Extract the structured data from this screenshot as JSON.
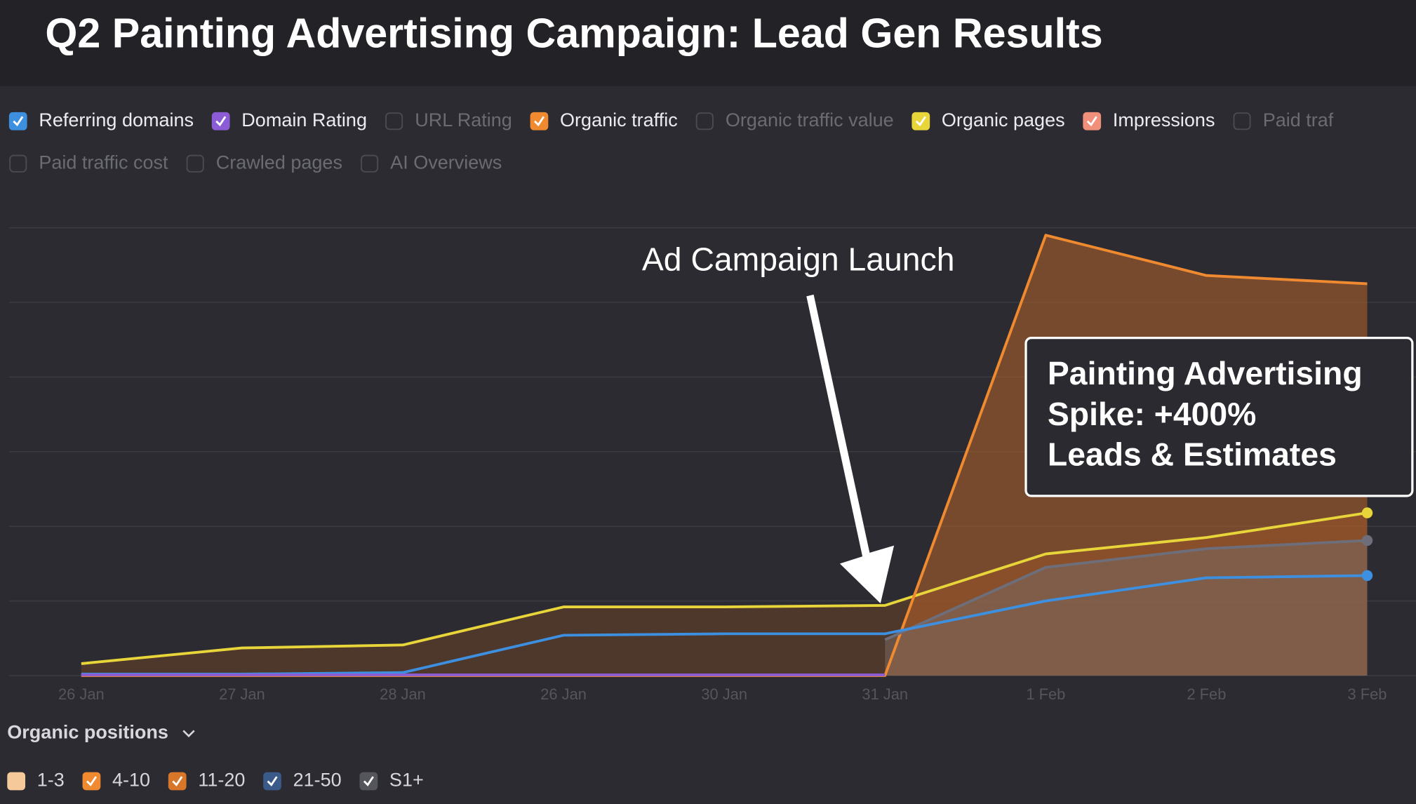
{
  "header": {
    "title": "Q2 Painting Advertising Campaign: Lead Gen Results"
  },
  "metrics": [
    {
      "label": "Referring domains",
      "checked": true,
      "color": "#3d8fe0",
      "row": 0
    },
    {
      "label": "Domain Rating",
      "checked": true,
      "color": "#8b5cd6",
      "row": 0
    },
    {
      "label": "URL Rating",
      "checked": false,
      "color": "#6b6b72",
      "row": 0
    },
    {
      "label": "Organic traffic",
      "checked": true,
      "color": "#f08a30",
      "row": 0
    },
    {
      "label": "Organic traffic value",
      "checked": false,
      "color": "#6b6b72",
      "row": 0
    },
    {
      "label": "Organic pages",
      "checked": true,
      "color": "#e8d53a",
      "row": 0
    },
    {
      "label": "Impressions",
      "checked": true,
      "color": "#f0907a",
      "row": 0
    },
    {
      "label": "Paid traf",
      "checked": false,
      "color": "#6b6b72",
      "row": 0
    },
    {
      "label": "Paid traffic cost",
      "checked": false,
      "color": "#6b6b72",
      "row": 1
    },
    {
      "label": "Crawled pages",
      "checked": false,
      "color": "#6b6b72",
      "row": 1
    },
    {
      "label": "AI Overviews",
      "checked": false,
      "color": "#6b6b72",
      "row": 1
    }
  ],
  "chart_data": {
    "type": "line",
    "categories": [
      "26 Jan",
      "27 Jan",
      "28 Jan",
      "26 Jan",
      "30 Jan",
      "31 Jan",
      "1 Feb",
      "2 Feb",
      "3 Feb"
    ],
    "ylim": [
      0,
      6
    ],
    "gridlines": [
      0,
      1,
      2,
      3,
      4,
      5,
      6
    ],
    "series": [
      {
        "color": "#e8d53a",
        "fill": "#6b4226",
        "marker": true,
        "values": [
          0.16,
          0.37,
          0.41,
          0.92,
          0.92,
          0.94,
          1.63,
          1.85,
          2.18
        ]
      },
      {
        "color": "#f08a30",
        "fill": "#b8642a",
        "marker": false,
        "values": [
          0,
          0,
          0,
          0,
          0,
          0,
          5.9,
          5.36,
          5.25
        ]
      },
      {
        "color": "#6e6e7a",
        "fill": "#7a6a62",
        "marker": true,
        "values": [
          null,
          null,
          null,
          null,
          null,
          0.48,
          1.45,
          1.7,
          1.81
        ]
      },
      {
        "color": "#3d8fe0",
        "fill": null,
        "marker": true,
        "values": [
          0.02,
          0.02,
          0.04,
          0.54,
          0.56,
          0.56,
          1.0,
          1.31,
          1.34
        ]
      },
      {
        "color": "#8b5cd6",
        "fill": null,
        "marker": false,
        "values": [
          0.01,
          0.01,
          0.01,
          0.01,
          0.01,
          0.01,
          null,
          null,
          null
        ]
      }
    ],
    "annotation": "Ad Campaign Launch",
    "callout": [
      "Painting Advertising",
      "Spike: +400%",
      "Leads & Estimates"
    ]
  },
  "positions": {
    "label": "Organic positions",
    "items": [
      {
        "label": "1-3",
        "checked": false,
        "color": "#f5c99a"
      },
      {
        "label": "4-10",
        "checked": true,
        "color": "#f08a30"
      },
      {
        "label": "11-20",
        "checked": true,
        "color": "#d8762a"
      },
      {
        "label": "21-50",
        "checked": true,
        "color": "#3a5a8a"
      },
      {
        "label": "S1+",
        "checked": true,
        "color": "#55555c"
      }
    ]
  }
}
